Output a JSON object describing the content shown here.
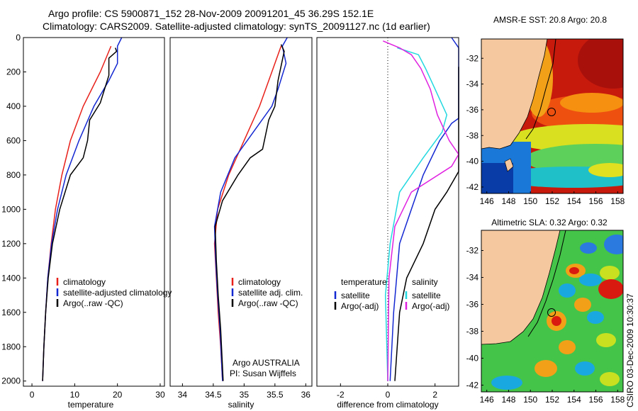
{
  "header": {
    "line1": "Argo profile: CS 5900871_152 28-Nov-2009 20091201_45 36.29S 152.1E",
    "line2": "Climatology: CARS2009. Satellite-adjusted climatology: synTS_20091127.nc (1d earlier)"
  },
  "credits": {
    "argo": "Argo AUSTRALIA",
    "pi": "PI: Susan Wijffels",
    "stamp": "CSIRO 03-Dec-2009 10:30:37"
  },
  "colors": {
    "climatology": "#e8201a",
    "satellite": "#1428d2",
    "argo": "#000000",
    "sat_salinity": "#22d8e0",
    "argo_salinity": "#e020e0",
    "land": "#f5c8a0"
  },
  "chart_data": [
    {
      "type": "line",
      "id": "temperature",
      "xlabel": "temperature",
      "xlim": [
        -2,
        31
      ],
      "ylim": [
        2030,
        0
      ],
      "xticks": [
        0,
        10,
        20,
        30
      ],
      "yticks": [
        0,
        200,
        400,
        600,
        800,
        1000,
        1200,
        1400,
        1600,
        1800,
        2000
      ],
      "legend": {
        "items": [
          "climatology",
          "satellite-adjusted climatology",
          "Argo(..raw -QC)"
        ]
      },
      "series": [
        {
          "name": "climatology",
          "color": "#e8201a",
          "points": [
            [
              18.5,
              50
            ],
            [
              16,
              200
            ],
            [
              12,
              400
            ],
            [
              9,
              600
            ],
            [
              7,
              800
            ],
            [
              5.5,
              1000
            ],
            [
              4.5,
              1200
            ],
            [
              3.7,
              1400
            ],
            [
              3.2,
              1600
            ],
            [
              2.8,
              1800
            ],
            [
              2.5,
              2000
            ]
          ]
        },
        {
          "name": "satellite-adjusted climatology",
          "color": "#1428d2",
          "points": [
            [
              21,
              0
            ],
            [
              20,
              50
            ],
            [
              20,
              150
            ],
            [
              18,
              250
            ],
            [
              14.5,
              400
            ],
            [
              11,
              600
            ],
            [
              8,
              800
            ],
            [
              6,
              1000
            ],
            [
              4.6,
              1200
            ],
            [
              3.7,
              1400
            ],
            [
              3.2,
              1600
            ],
            [
              2.8,
              1800
            ],
            [
              2.5,
              2000
            ]
          ]
        },
        {
          "name": "Argo(..raw -QC)",
          "color": "#000000",
          "points": [
            [
              19.5,
              60
            ],
            [
              19.8,
              80
            ],
            [
              18,
              120
            ],
            [
              18,
              220
            ],
            [
              16,
              380
            ],
            [
              13.5,
              480
            ],
            [
              13,
              600
            ],
            [
              12,
              700
            ],
            [
              9,
              800
            ],
            [
              6.5,
              1000
            ],
            [
              4.8,
              1200
            ],
            [
              3.8,
              1400
            ],
            [
              3.2,
              1600
            ],
            [
              2.8,
              1800
            ],
            [
              2.5,
              2000
            ]
          ]
        }
      ]
    },
    {
      "type": "line",
      "id": "salinity",
      "xlabel": "salinity",
      "xlim": [
        33.8,
        36.1
      ],
      "ylim": [
        2030,
        0
      ],
      "xticks": [
        34,
        34.5,
        35,
        35.5,
        36
      ],
      "legend": {
        "items": [
          "climatology",
          "satellite adj. clim.",
          "Argo(..raw -QC)"
        ]
      },
      "series": [
        {
          "name": "climatology",
          "color": "#e8201a",
          "points": [
            [
              35.6,
              50
            ],
            [
              35.45,
              200
            ],
            [
              35.25,
              400
            ],
            [
              35.0,
              600
            ],
            [
              34.75,
              800
            ],
            [
              34.57,
              1000
            ],
            [
              34.52,
              1200
            ],
            [
              34.55,
              1400
            ],
            [
              34.58,
              1600
            ],
            [
              34.62,
              1800
            ],
            [
              34.65,
              2000
            ]
          ]
        },
        {
          "name": "satellite adj. clim.",
          "color": "#1428d2",
          "points": [
            [
              35.7,
              0
            ],
            [
              35.62,
              50
            ],
            [
              35.68,
              150
            ],
            [
              35.55,
              300
            ],
            [
              35.45,
              400
            ],
            [
              35.15,
              550
            ],
            [
              34.85,
              700
            ],
            [
              34.62,
              900
            ],
            [
              34.52,
              1100
            ],
            [
              34.54,
              1300
            ],
            [
              34.57,
              1500
            ],
            [
              34.61,
              1700
            ],
            [
              34.65,
              2000
            ]
          ]
        },
        {
          "name": "Argo(..raw -QC)",
          "color": "#000000",
          "points": [
            [
              35.6,
              40
            ],
            [
              35.65,
              80
            ],
            [
              35.55,
              250
            ],
            [
              35.5,
              400
            ],
            [
              35.4,
              480
            ],
            [
              35.3,
              650
            ],
            [
              35.1,
              700
            ],
            [
              34.9,
              800
            ],
            [
              34.65,
              950
            ],
            [
              34.53,
              1100
            ],
            [
              34.55,
              1300
            ],
            [
              34.58,
              1500
            ],
            [
              34.62,
              1700
            ],
            [
              34.66,
              2000
            ]
          ]
        }
      ]
    },
    {
      "type": "line",
      "id": "difference",
      "xlabel": "difference from climatology",
      "xlim": [
        -3,
        3
      ],
      "ylim": [
        2030,
        0
      ],
      "xticks": [
        -2,
        0,
        2
      ],
      "legend": {
        "groups": [
          {
            "title": "temperature",
            "items": [
              "satellite",
              "Argo(-adj)"
            ]
          },
          {
            "title": "salinity",
            "items": [
              "satellite",
              "Argo(-adj)"
            ]
          }
        ]
      },
      "series": [
        {
          "name": "satellite",
          "group": "temperature",
          "color": "#1428d2",
          "points": [
            [
              2.7,
              0
            ],
            [
              3,
              60
            ],
            [
              3,
              200
            ],
            [
              3,
              470
            ],
            [
              2.7,
              500
            ],
            [
              2.2,
              600
            ],
            [
              1.5,
              800
            ],
            [
              1.0,
              1000
            ],
            [
              0.5,
              1200
            ],
            [
              0.25,
              1600
            ],
            [
              0.1,
              2000
            ]
          ]
        },
        {
          "name": "Argo(-adj)",
          "group": "temperature",
          "color": "#000000",
          "points": [
            [
              3,
              170
            ],
            [
              3,
              780
            ],
            [
              2.5,
              900
            ],
            [
              2,
              1000
            ],
            [
              1.5,
              1200
            ],
            [
              0.8,
              1400
            ],
            [
              0.5,
              1600
            ],
            [
              0.3,
              2000
            ]
          ]
        },
        {
          "name": "satellite",
          "group": "salinity",
          "color": "#22d8e0",
          "points": [
            [
              0.4,
              60
            ],
            [
              1.3,
              100
            ],
            [
              1.6,
              180
            ],
            [
              2.0,
              300
            ],
            [
              2.5,
              450
            ],
            [
              2.3,
              550
            ],
            [
              1.5,
              700
            ],
            [
              0.5,
              900
            ],
            [
              0.1,
              1200
            ],
            [
              -0.1,
              1500
            ],
            [
              0,
              2000
            ]
          ]
        },
        {
          "name": "Argo(-adj)",
          "group": "salinity",
          "color": "#e020e0",
          "points": [
            [
              -0.2,
              20
            ],
            [
              0.5,
              60
            ],
            [
              1.0,
              100
            ],
            [
              1.4,
              180
            ],
            [
              1.8,
              300
            ],
            [
              2.1,
              450
            ],
            [
              2.6,
              600
            ],
            [
              3.0,
              680
            ],
            [
              2.7,
              750
            ],
            [
              1.0,
              900
            ],
            [
              0.3,
              1100
            ],
            [
              0.05,
              1400
            ],
            [
              0,
              2000
            ]
          ]
        }
      ]
    }
  ],
  "maps": [
    {
      "id": "sst",
      "title": "AMSR-E SST: 20.8 Argo: 20.8",
      "xticks": [
        146,
        148,
        150,
        152,
        154,
        156,
        158
      ],
      "yticks": [
        -32,
        -34,
        -36,
        -38,
        -40,
        -42
      ],
      "xlim": [
        145.5,
        158.5
      ],
      "ylim": [
        -42.5,
        -30.5
      ],
      "marker": [
        152.1,
        -36.29
      ]
    },
    {
      "id": "sla",
      "title": "Altimetric SLA: 0.32 Argo: 0.32",
      "xticks": [
        146,
        148,
        150,
        152,
        154,
        156,
        158
      ],
      "yticks": [
        -32,
        -34,
        -36,
        -38,
        -40,
        -42
      ],
      "xlim": [
        145.5,
        158.5
      ],
      "ylim": [
        -42.5,
        -30.5
      ],
      "marker": [
        152.1,
        -36.29
      ]
    }
  ]
}
